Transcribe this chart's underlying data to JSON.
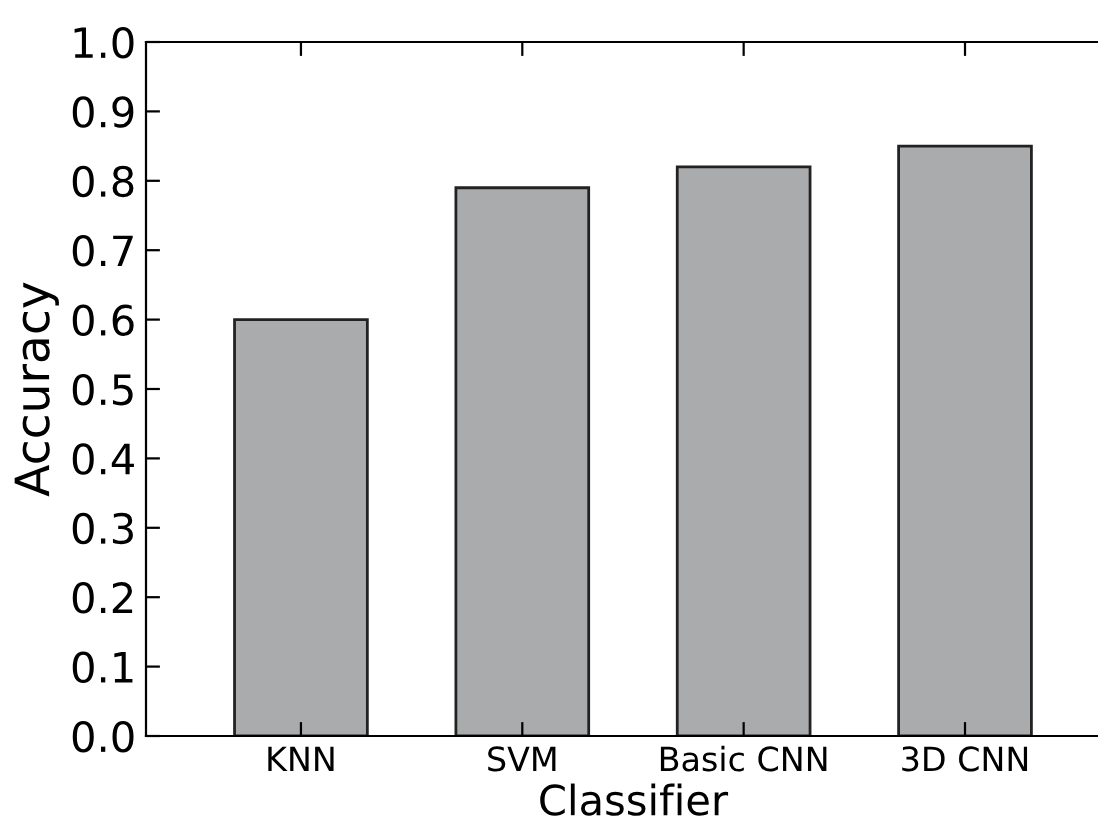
{
  "chart_data": {
    "type": "bar",
    "xlabel": "Classifier",
    "ylabel": "Accuracy",
    "categories": [
      "KNN",
      "SVM",
      "Basic CNN",
      "3D CNN"
    ],
    "values": [
      0.6,
      0.79,
      0.82,
      0.85
    ],
    "color": "#aaabad",
    "ylim": [
      0.0,
      1.0
    ],
    "yticks": [
      {
        "value": 0.0,
        "label": "0.0"
      },
      {
        "value": 0.1,
        "label": "0.1"
      },
      {
        "value": 0.2,
        "label": "0.2"
      },
      {
        "value": 0.3,
        "label": "0.3"
      },
      {
        "value": 0.4,
        "label": "0.4"
      },
      {
        "value": 0.5,
        "label": "0.5"
      },
      {
        "value": 0.6,
        "label": "0.6"
      },
      {
        "value": 0.7,
        "label": "0.7"
      },
      {
        "value": 0.8,
        "label": "0.8"
      },
      {
        "value": 0.9,
        "label": "0.9"
      },
      {
        "value": 1.0,
        "label": "1.0"
      }
    ],
    "grid": false
  }
}
